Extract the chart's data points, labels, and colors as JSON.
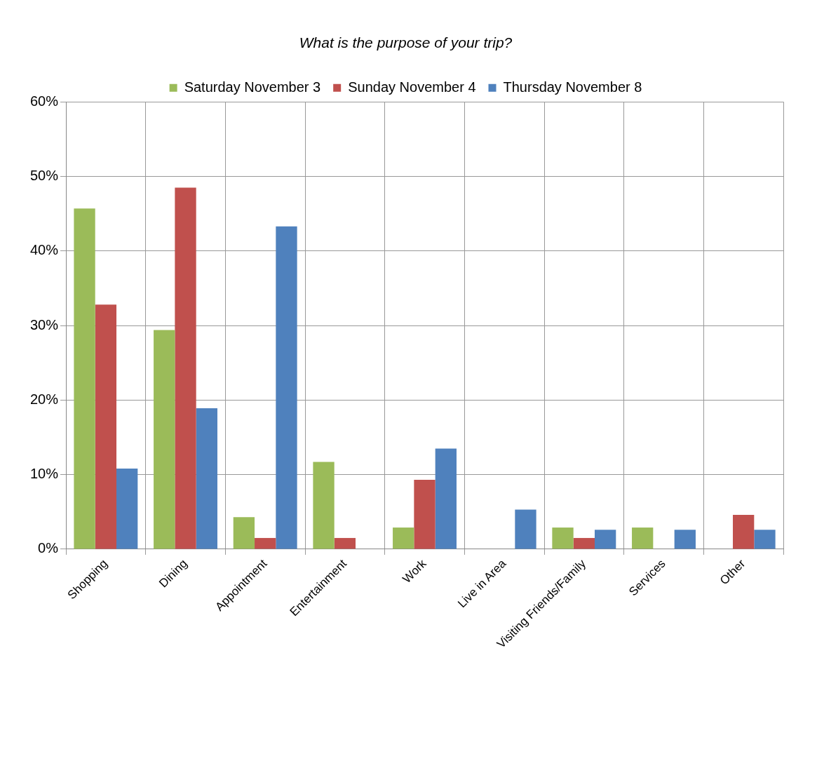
{
  "chart_data": {
    "type": "bar",
    "title": "What is the purpose of your trip?",
    "categories": [
      "Shopping",
      "Dining",
      "Appointment",
      "Entertainment",
      "Work",
      "Live in Area",
      "Visiting Friends/Family",
      "Services",
      "Other"
    ],
    "series": [
      {
        "name": "Saturday November 3",
        "color": "#9bbb59",
        "values": [
          45.7,
          29.4,
          4.3,
          11.7,
          2.9,
          null,
          2.9,
          2.9,
          null
        ]
      },
      {
        "name": "Sunday November 4",
        "color": "#c0504d",
        "values": [
          32.8,
          48.5,
          1.5,
          1.5,
          9.3,
          null,
          1.5,
          null,
          4.6
        ]
      },
      {
        "name": "Thursday November 8",
        "color": "#4f81bd",
        "values": [
          10.8,
          18.9,
          43.3,
          null,
          13.5,
          5.3,
          2.6,
          2.6,
          2.6
        ]
      }
    ],
    "ylim": [
      0,
      60
    ],
    "yticks": [
      {
        "value": 0,
        "label": "0%"
      },
      {
        "value": 10,
        "label": "10%"
      },
      {
        "value": 20,
        "label": "20%"
      },
      {
        "value": 30,
        "label": "30%"
      },
      {
        "value": 40,
        "label": "40%"
      },
      {
        "value": 50,
        "label": "50%"
      },
      {
        "value": 60,
        "label": "60%"
      }
    ],
    "grid": true,
    "legend": "top"
  }
}
